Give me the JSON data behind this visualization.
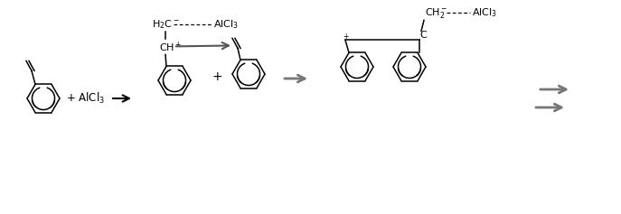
{
  "bg_color": "#ffffff",
  "fig_width": 6.87,
  "fig_height": 2.37,
  "dpi": 100,
  "lw": 1.1,
  "ring_r": 18,
  "arrow_lw": 1.4,
  "gray_arrow": "#777777",
  "dark_arrow": "#222222"
}
